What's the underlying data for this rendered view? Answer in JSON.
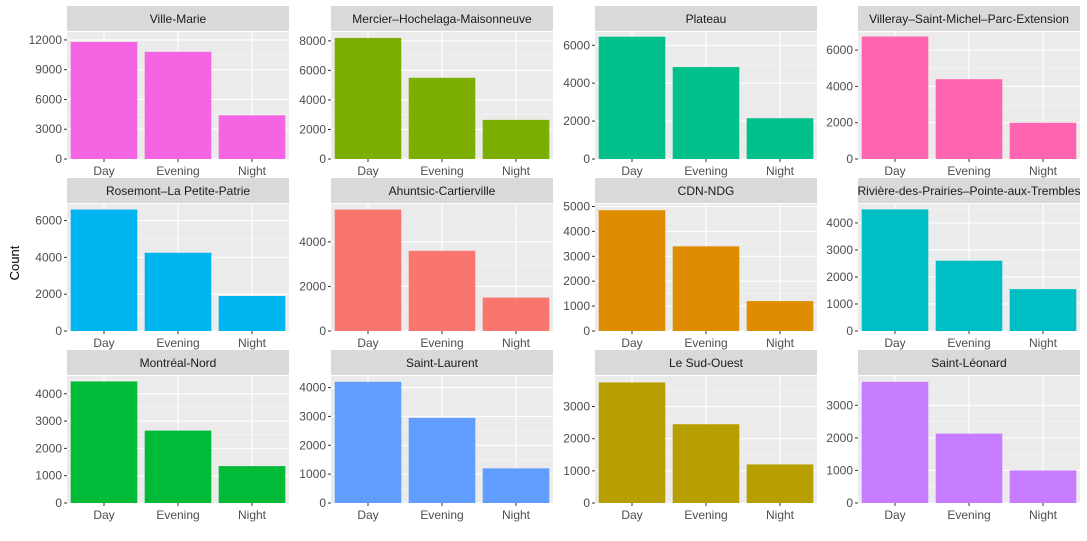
{
  "chart_data": {
    "type": "bar",
    "ylabel": "Count",
    "categories": [
      "Day",
      "Evening",
      "Night"
    ],
    "grid": true,
    "legend": "none",
    "panels": [
      {
        "title": "Ville-Marie",
        "color": "#f564e3",
        "ylim": [
          0,
          12800
        ],
        "yticks": [
          0,
          3000,
          6000,
          9000,
          12000
        ],
        "values": [
          11800,
          10800,
          4400
        ]
      },
      {
        "title": "Mercier–Hochelaga-Maisonneuve",
        "color": "#7cae00",
        "ylim": [
          0,
          8600
        ],
        "yticks": [
          0,
          2000,
          4000,
          6000,
          8000
        ],
        "values": [
          8200,
          5500,
          2650
        ]
      },
      {
        "title": "Plateau",
        "color": "#00c08b",
        "ylim": [
          0,
          6700
        ],
        "yticks": [
          0,
          2000,
          4000,
          6000
        ],
        "values": [
          6450,
          4850,
          2150
        ]
      },
      {
        "title": "Villeray–Saint-Michel–Parc-Extension",
        "color": "#ff64b0",
        "ylim": [
          0,
          7000
        ],
        "yticks": [
          0,
          2000,
          4000,
          6000
        ],
        "values": [
          6750,
          4400,
          2000
        ]
      },
      {
        "title": "Rosemont–La Petite-Patrie",
        "color": "#00b4f0",
        "ylim": [
          0,
          6900
        ],
        "yticks": [
          0,
          2000,
          4000,
          6000
        ],
        "values": [
          6600,
          4250,
          1900
        ]
      },
      {
        "title": "Ahuntsic-Cartierville",
        "color": "#f8766d",
        "ylim": [
          0,
          5700
        ],
        "yticks": [
          0,
          2000,
          4000
        ],
        "values": [
          5450,
          3600,
          1500
        ]
      },
      {
        "title": "CDN-NDG",
        "color": "#de8c00",
        "ylim": [
          0,
          5100
        ],
        "yticks": [
          0,
          1000,
          2000,
          3000,
          4000,
          5000
        ],
        "values": [
          4850,
          3400,
          1200
        ]
      },
      {
        "title": "Rivière-des-Prairies–Pointe-aux-Trembles",
        "color": "#00bfc4",
        "ylim": [
          0,
          4700
        ],
        "yticks": [
          0,
          1000,
          2000,
          3000,
          4000
        ],
        "values": [
          4500,
          2600,
          1550
        ]
      },
      {
        "title": "Montréal-Nord",
        "color": "#00ba38",
        "ylim": [
          0,
          4650
        ],
        "yticks": [
          0,
          1000,
          2000,
          3000,
          4000
        ],
        "values": [
          4450,
          2650,
          1350
        ]
      },
      {
        "title": "Saint-Laurent",
        "color": "#619cff",
        "ylim": [
          0,
          4400
        ],
        "yticks": [
          0,
          1000,
          2000,
          3000,
          4000
        ],
        "values": [
          4200,
          2950,
          1200
        ]
      },
      {
        "title": "Le Sud-Ouest",
        "color": "#b79f00",
        "ylim": [
          0,
          3950
        ],
        "yticks": [
          0,
          1000,
          2000,
          3000
        ],
        "values": [
          3750,
          2450,
          1200
        ]
      },
      {
        "title": "Saint-Léonard",
        "color": "#c77cff",
        "ylim": [
          0,
          3900
        ],
        "yticks": [
          0,
          1000,
          2000,
          3000
        ],
        "values": [
          3720,
          2130,
          1000
        ]
      }
    ]
  }
}
